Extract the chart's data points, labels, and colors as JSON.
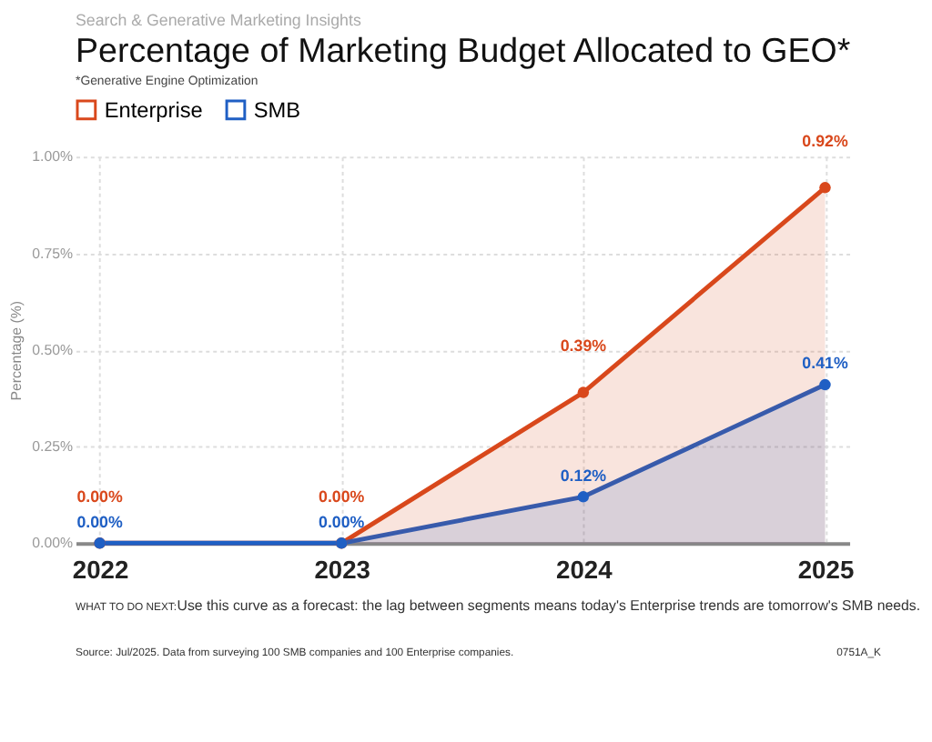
{
  "chart_data": {
    "type": "line",
    "title": "Percentage of Marketing Budget Allocated to GEO*",
    "subtitle": "*Generative Engine Optimization",
    "ylabel": "Percentage (%)",
    "categories": [
      "2022",
      "2023",
      "2024",
      "2025"
    ],
    "series": [
      {
        "name": "Enterprise",
        "color": "#d9481c",
        "values": [
          0,
          0,
          0.39,
          0.92
        ],
        "value_labels": [
          "0.00%",
          "0.00%",
          "0.39%",
          "0.92%"
        ]
      },
      {
        "name": "SMB",
        "color": "#1f5fc4",
        "values": [
          0,
          0,
          0.12,
          0.41
        ],
        "value_labels": [
          "0.00%",
          "0.00%",
          "0.12%",
          "0.41%"
        ]
      }
    ],
    "ylim": [
      0,
      1.0
    ],
    "yticks": [
      {
        "value": 0,
        "label": "0.00%"
      },
      {
        "value": 0.25,
        "label": "0.25%"
      },
      {
        "value": 0.5,
        "label": "0.50%"
      },
      {
        "value": 0.75,
        "label": "0.75%"
      },
      {
        "value": 1.0,
        "label": "1.00%"
      }
    ],
    "grid": true,
    "legend": "top",
    "marker": "circle",
    "line_style": "solid",
    "annotations": [
      "Search & Generative Marketing Insights",
      "WHAT TO DO NEXT:",
      "Use this curve as a forecast: the lag between segments means today's Enterprise trends are tomorrow's SMB needs.",
      "Source: Jul/2025. Data from surveying 100 SMB companies and 100 Enterprise companies.",
      "0751A_K"
    ]
  }
}
